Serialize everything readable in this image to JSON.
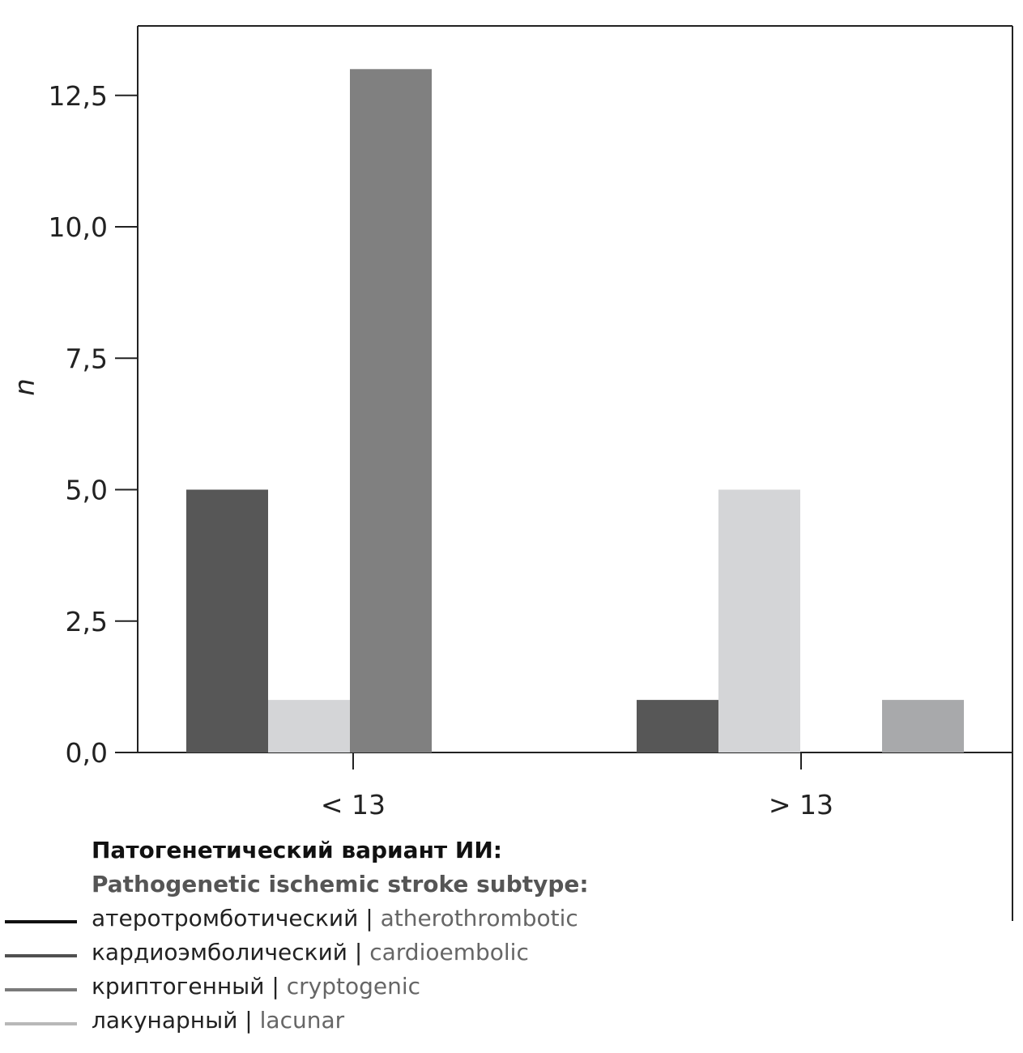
{
  "chart_data": {
    "type": "bar",
    "categories": [
      "< 13",
      "> 13"
    ],
    "series": [
      {
        "name": "кардиоэмболический | cardioembolic",
        "values": [
          5,
          1
        ],
        "color": "#575757"
      },
      {
        "name": "лакунарный | lacunar",
        "values": [
          1,
          5
        ],
        "color": "#d4d5d7"
      },
      {
        "name": "криптогенный | cryptogenic",
        "values": [
          13,
          0
        ],
        "color": "#808080"
      },
      {
        "name": "",
        "values": [
          0,
          1
        ],
        "color": "#a8a9ab"
      }
    ],
    "ylabel": "n",
    "xlabel": "",
    "ylim": [
      0,
      14
    ],
    "yticks": [
      0,
      2.5,
      5,
      7.5,
      10,
      12.5
    ],
    "ytick_labels": [
      "0,0",
      "2,5",
      "5,0",
      "7,5",
      "10,0",
      "12,5"
    ],
    "grid": false,
    "legend": {
      "title_ru": "Патогенетический вариант ИИ:",
      "title_en": "Pathogenetic ischemic stroke subtype:",
      "placement": "bottom-left",
      "items": [
        {
          "ru": "атеротромботический",
          "en": "atherothrombotic",
          "color": "#111111"
        },
        {
          "ru": "кардиоэмболический",
          "en": "cardioembolic",
          "color": "#505050"
        },
        {
          "ru": "криптогенный",
          "en": "cryptogenic",
          "color": "#7a7a7a"
        },
        {
          "ru": "лакунарный",
          "en": "lacunar",
          "color": "#b8b8b8"
        }
      ]
    }
  }
}
